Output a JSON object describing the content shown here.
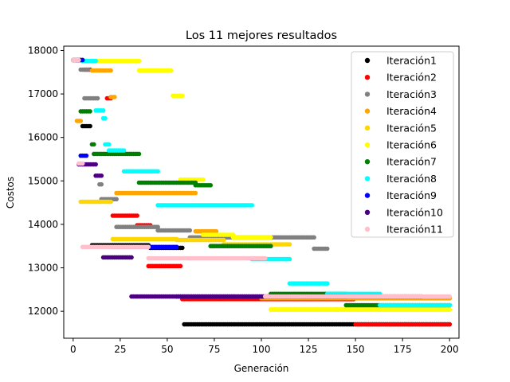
{
  "chart_data": {
    "type": "scatter",
    "title": "Los 11 mejores resultados",
    "xlabel": "Generación",
    "ylabel": "Costos",
    "xlim": [
      -5,
      205
    ],
    "ylim": [
      11380,
      18100
    ],
    "xticks": [
      0,
      25,
      50,
      75,
      100,
      125,
      150,
      175,
      200
    ],
    "yticks": [
      12000,
      13000,
      14000,
      15000,
      16000,
      17000,
      18000
    ],
    "legend_position": "top-right",
    "grid": false,
    "series": [
      {
        "name": "Iteración1",
        "color": "#000000",
        "segments": [
          {
            "x0": 0,
            "x1": 4,
            "y": 17780
          },
          {
            "x0": 5,
            "x1": 9,
            "y": 16260
          },
          {
            "x0": 10,
            "x1": 40,
            "y": 13520
          },
          {
            "x0": 41,
            "x1": 58,
            "y": 13460
          },
          {
            "x0": 59,
            "x1": 200,
            "y": 11700
          }
        ]
      },
      {
        "name": "Iteración2",
        "color": "#ff0000",
        "segments": [
          {
            "x0": 0,
            "x1": 5,
            "y": 17780
          },
          {
            "x0": 6,
            "x1": 9,
            "y": 17560
          },
          {
            "x0": 18,
            "x1": 20,
            "y": 16900
          },
          {
            "x0": 21,
            "x1": 34,
            "y": 14200
          },
          {
            "x0": 34,
            "x1": 41,
            "y": 13980
          },
          {
            "x0": 40,
            "x1": 57,
            "y": 13040
          },
          {
            "x0": 58,
            "x1": 104,
            "y": 12280
          },
          {
            "x0": 105,
            "x1": 149,
            "y": 12280
          },
          {
            "x0": 150,
            "x1": 200,
            "y": 11700
          }
        ]
      },
      {
        "name": "Iteración3",
        "color": "#808080",
        "segments": [
          {
            "x0": 0,
            "x1": 3,
            "y": 17780
          },
          {
            "x0": 4,
            "x1": 8,
            "y": 17560
          },
          {
            "x0": 6,
            "x1": 13,
            "y": 16900
          },
          {
            "x0": 14,
            "x1": 15,
            "y": 14920
          },
          {
            "x0": 15,
            "x1": 23,
            "y": 14580
          },
          {
            "x0": 23,
            "x1": 45,
            "y": 13940
          },
          {
            "x0": 45,
            "x1": 62,
            "y": 13860
          },
          {
            "x0": 62,
            "x1": 128,
            "y": 13700
          },
          {
            "x0": 128,
            "x1": 135,
            "y": 13440
          },
          {
            "x0": 136,
            "x1": 200,
            "y": 12300
          }
        ]
      },
      {
        "name": "Iteración4",
        "color": "#ffa500",
        "segments": [
          {
            "x0": 2,
            "x1": 4,
            "y": 17780
          },
          {
            "x0": 10,
            "x1": 20,
            "y": 17540
          },
          {
            "x0": 20,
            "x1": 22,
            "y": 16930
          },
          {
            "x0": 2,
            "x1": 4,
            "y": 16380
          },
          {
            "x0": 23,
            "x1": 65,
            "y": 14720
          },
          {
            "x0": 65,
            "x1": 76,
            "y": 13840
          },
          {
            "x0": 100,
            "x1": 130,
            "y": 12300
          },
          {
            "x0": 130,
            "x1": 200,
            "y": 12300
          }
        ]
      },
      {
        "name": "Iteración5",
        "color": "#ffd700",
        "segments": [
          {
            "x0": 4,
            "x1": 20,
            "y": 14520
          },
          {
            "x0": 21,
            "x1": 55,
            "y": 13660
          },
          {
            "x0": 55,
            "x1": 80,
            "y": 13640
          },
          {
            "x0": 80,
            "x1": 115,
            "y": 13540
          },
          {
            "x0": 105,
            "x1": 140,
            "y": 12040
          },
          {
            "x0": 140,
            "x1": 200,
            "y": 12040
          }
        ]
      },
      {
        "name": "Iteración6",
        "color": "#ffff00",
        "segments": [
          {
            "x0": 5,
            "x1": 35,
            "y": 17760
          },
          {
            "x0": 35,
            "x1": 52,
            "y": 17540
          },
          {
            "x0": 53,
            "x1": 58,
            "y": 16960
          },
          {
            "x0": 57,
            "x1": 69,
            "y": 15030
          },
          {
            "x0": 69,
            "x1": 85,
            "y": 13760
          },
          {
            "x0": 85,
            "x1": 105,
            "y": 13700
          },
          {
            "x0": 105,
            "x1": 200,
            "y": 12040
          }
        ]
      },
      {
        "name": "Iteración7",
        "color": "#008000",
        "segments": [
          {
            "x0": 4,
            "x1": 9,
            "y": 16600
          },
          {
            "x0": 10,
            "x1": 11,
            "y": 15840
          },
          {
            "x0": 11,
            "x1": 35,
            "y": 15620
          },
          {
            "x0": 35,
            "x1": 65,
            "y": 14960
          },
          {
            "x0": 65,
            "x1": 73,
            "y": 14900
          },
          {
            "x0": 73,
            "x1": 105,
            "y": 13500
          },
          {
            "x0": 105,
            "x1": 145,
            "y": 12400
          },
          {
            "x0": 145,
            "x1": 200,
            "y": 12140
          }
        ]
      },
      {
        "name": "Iteración8",
        "color": "#00ffff",
        "segments": [
          {
            "x0": 5,
            "x1": 12,
            "y": 17760
          },
          {
            "x0": 12,
            "x1": 16,
            "y": 16620
          },
          {
            "x0": 16,
            "x1": 17,
            "y": 16440
          },
          {
            "x0": 17,
            "x1": 19,
            "y": 15840
          },
          {
            "x0": 19,
            "x1": 27,
            "y": 15700
          },
          {
            "x0": 27,
            "x1": 45,
            "y": 15220
          },
          {
            "x0": 45,
            "x1": 95,
            "y": 14440
          },
          {
            "x0": 95,
            "x1": 115,
            "y": 13200
          },
          {
            "x0": 115,
            "x1": 135,
            "y": 12640
          },
          {
            "x0": 135,
            "x1": 163,
            "y": 12400
          },
          {
            "x0": 163,
            "x1": 200,
            "y": 12140
          }
        ]
      },
      {
        "name": "Iteración9",
        "color": "#0000ff",
        "segments": [
          {
            "x0": 2,
            "x1": 5,
            "y": 17780
          },
          {
            "x0": 4,
            "x1": 7,
            "y": 15580
          },
          {
            "x0": 20,
            "x1": 55,
            "y": 13480
          },
          {
            "x0": 55,
            "x1": 85,
            "y": 12340
          },
          {
            "x0": 85,
            "x1": 185,
            "y": 12340
          }
        ]
      },
      {
        "name": "Iteración10",
        "color": "#4b0082",
        "segments": [
          {
            "x0": 3,
            "x1": 12,
            "y": 15380
          },
          {
            "x0": 12,
            "x1": 15,
            "y": 15120
          },
          {
            "x0": 16,
            "x1": 31,
            "y": 13240
          },
          {
            "x0": 31,
            "x1": 145,
            "y": 12340
          }
        ]
      },
      {
        "name": "Iteración11",
        "color": "#ffc0cb",
        "segments": [
          {
            "x0": 0,
            "x1": 3,
            "y": 17780
          },
          {
            "x0": 3,
            "x1": 5,
            "y": 15400
          },
          {
            "x0": 5,
            "x1": 40,
            "y": 13480
          },
          {
            "x0": 40,
            "x1": 102,
            "y": 13220
          },
          {
            "x0": 102,
            "x1": 200,
            "y": 12340
          }
        ]
      }
    ]
  }
}
